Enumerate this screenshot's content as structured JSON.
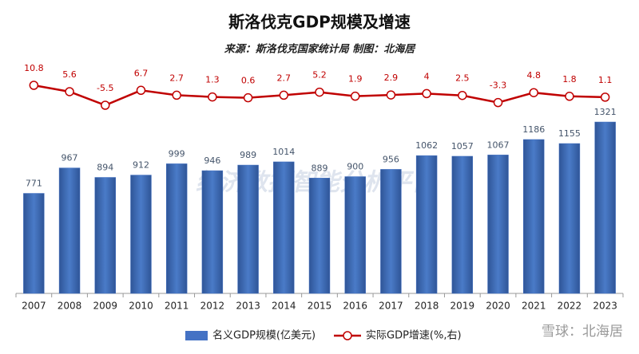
{
  "chart_data": {
    "type": "bar-line",
    "title": "斯洛伐克GDP规模及增速",
    "subtitle": "来源：斯洛伐克国家统计局 制图：北海居",
    "watermark": "经济数据智能分析平台",
    "credit": "雪球：北海居",
    "categories": [
      "2007",
      "2008",
      "2009",
      "2010",
      "2011",
      "2012",
      "2013",
      "2014",
      "2015",
      "2016",
      "2017",
      "2018",
      "2019",
      "2020",
      "2021",
      "2022",
      "2023"
    ],
    "series": [
      {
        "name": "名义GDP规模(亿美元)",
        "color": "#4472c4",
        "type": "bar",
        "values": [
          771,
          967,
          894,
          912,
          999,
          946,
          989,
          1014,
          889,
          900,
          956,
          1062,
          1057,
          1067,
          1186,
          1155,
          1321
        ]
      },
      {
        "name": "实际GDP增速(%,右)",
        "color": "#c00000",
        "type": "line",
        "axis": "y2",
        "values": [
          10.8,
          5.6,
          -5.5,
          6.7,
          2.7,
          1.3,
          0.6,
          2.7,
          5.2,
          1.9,
          2.9,
          4.0,
          2.5,
          -3.3,
          4.8,
          1.8,
          1.1
        ]
      }
    ],
    "legend": "bottom"
  }
}
